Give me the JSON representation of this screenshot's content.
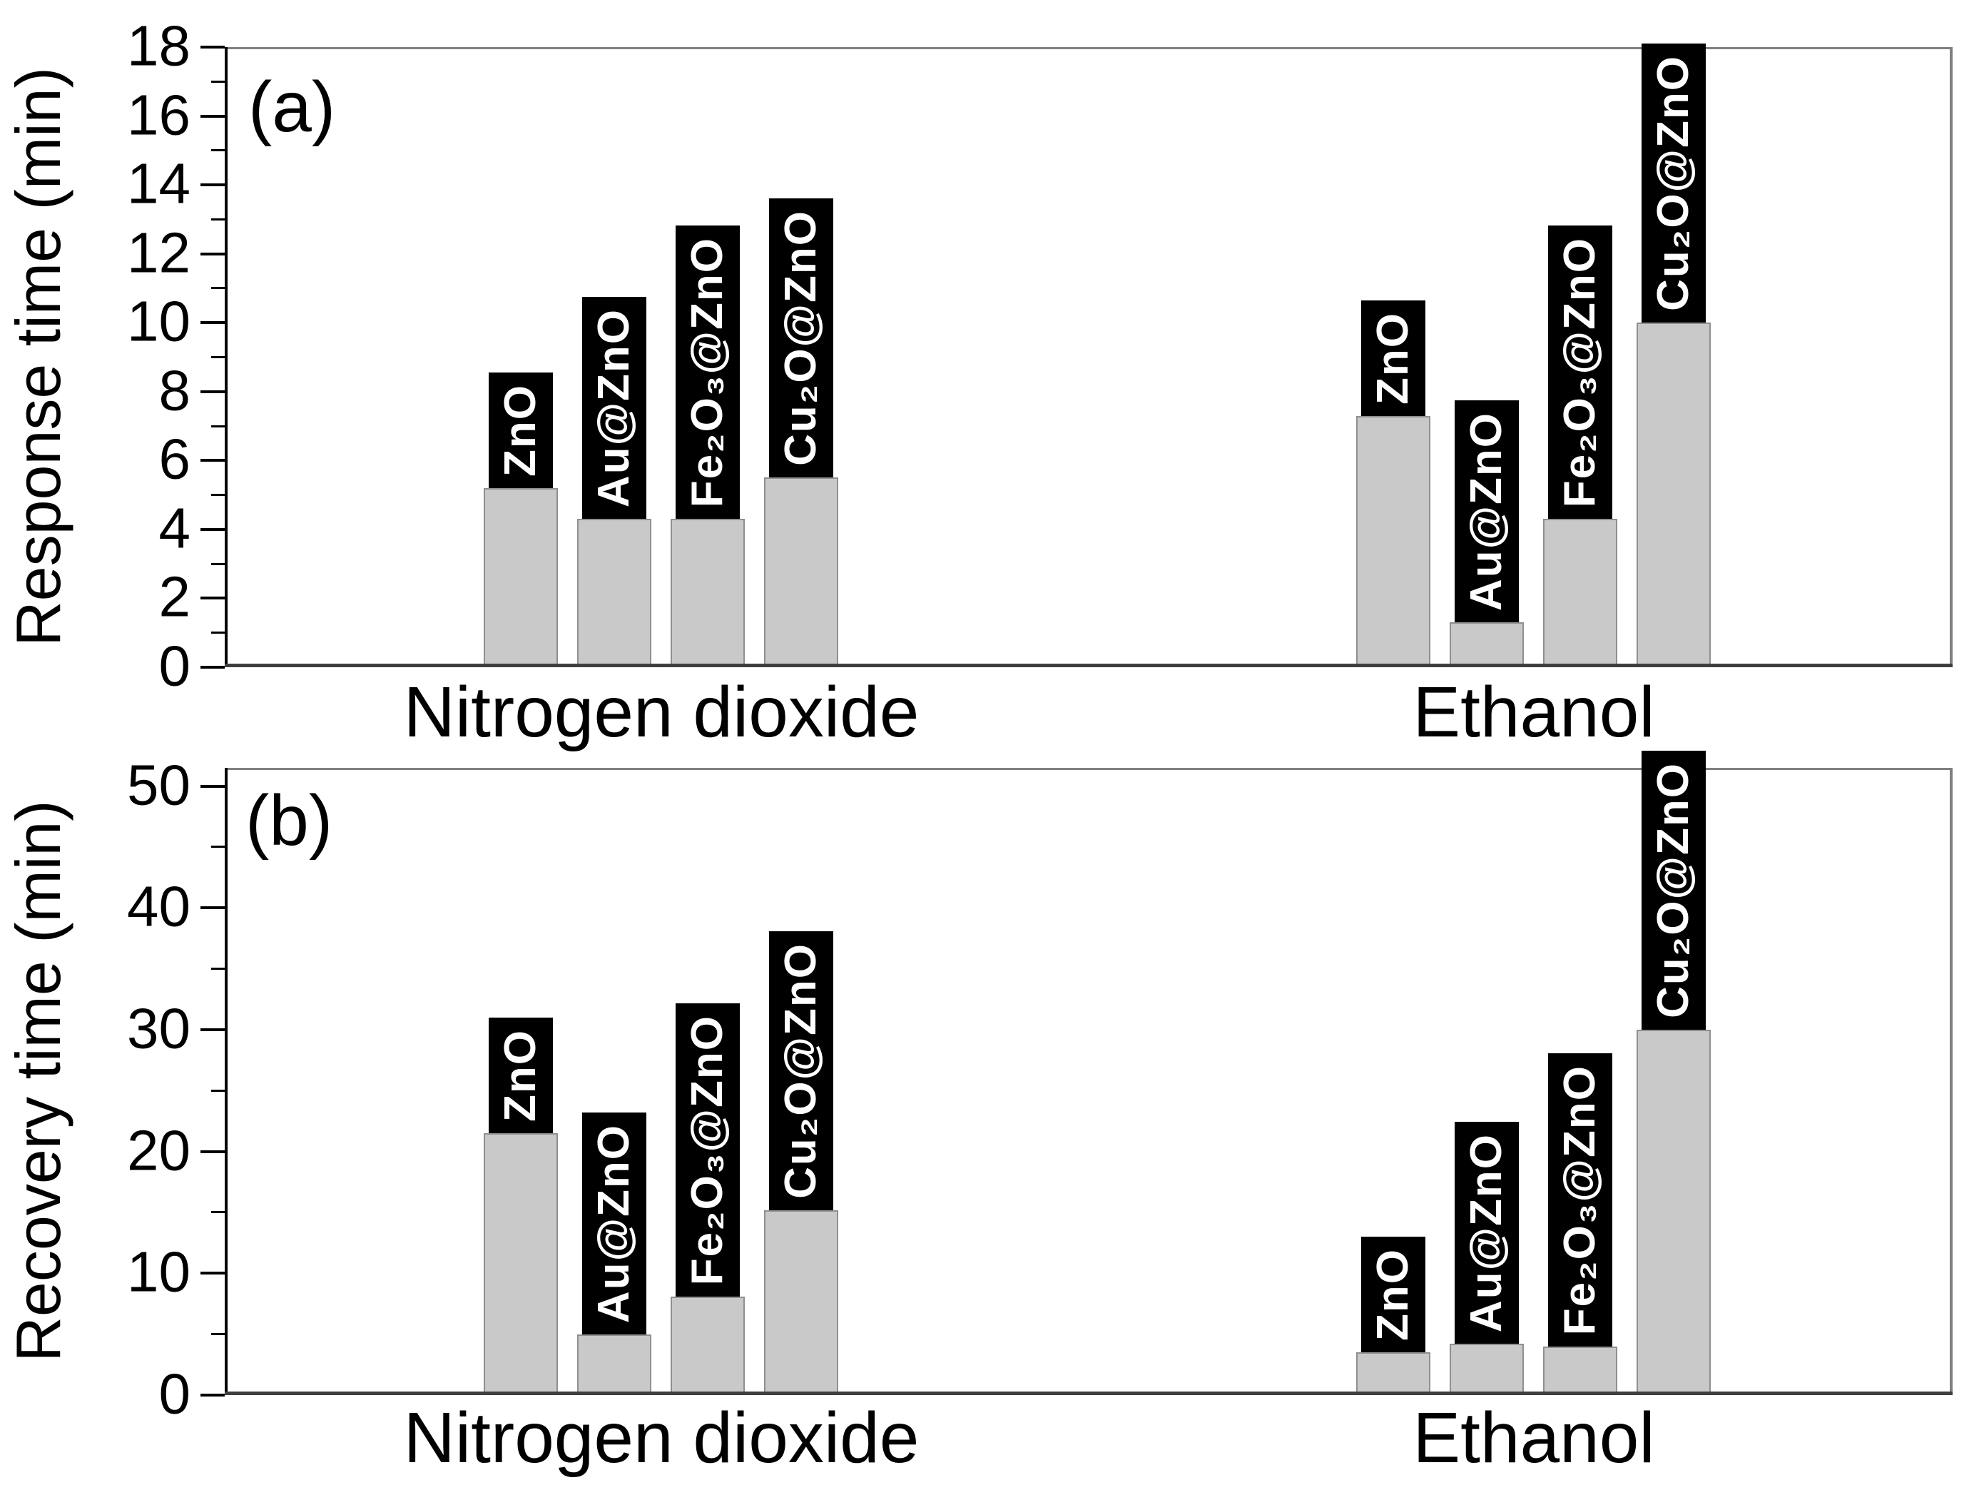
{
  "figure": {
    "colors": {
      "bar_fill": "#c9c9c9",
      "bar_border": "#8f8f8f",
      "label_box_bg": "#000000",
      "label_box_text": "#ffffff",
      "axis_spine": "#000000",
      "frame_gray": "#808080",
      "baseline_gray": "#3f3f3f"
    }
  },
  "chart_data": [
    {
      "type": "bar",
      "panel": "(a)",
      "ylabel": "Response time (min)",
      "ylim": [
        0,
        18
      ],
      "ytick_major": [
        0,
        2,
        4,
        6,
        8,
        10,
        12,
        14,
        16,
        18
      ],
      "ytick_minor": [
        1,
        3,
        5,
        7,
        9,
        11,
        13,
        15,
        17
      ],
      "grid": false,
      "legend": "none",
      "categories": [
        "Nitrogen dioxide",
        "Ethanol"
      ],
      "bar_labels": [
        "ZnO",
        "Au@ZnO",
        "Fe₂O₃@ZnO",
        "Cu₂O@ZnO"
      ],
      "series": [
        {
          "category": "Nitrogen dioxide",
          "values": [
            5.2,
            4.3,
            4.3,
            5.5
          ]
        },
        {
          "category": "Ethanol",
          "values": [
            7.3,
            1.3,
            4.3,
            10.0
          ]
        }
      ]
    },
    {
      "type": "bar",
      "panel": "(b)",
      "ylabel": "Recovery time (min)",
      "ylim": [
        0,
        51.5
      ],
      "ytick_major": [
        0,
        10,
        20,
        30,
        40,
        50
      ],
      "ytick_minor": [
        5,
        15,
        25,
        35,
        45
      ],
      "grid": false,
      "legend": "none",
      "categories": [
        "Nitrogen dioxide",
        "Ethanol"
      ],
      "bar_labels": [
        "ZnO",
        "Au@ZnO",
        "Fe₂O₃@ZnO",
        "Cu₂O@ZnO"
      ],
      "series": [
        {
          "category": "Nitrogen dioxide",
          "values": [
            21.5,
            5.0,
            8.1,
            15.2
          ]
        },
        {
          "category": "Ethanol",
          "values": [
            3.5,
            4.2,
            4.0,
            30.0
          ]
        }
      ]
    }
  ]
}
